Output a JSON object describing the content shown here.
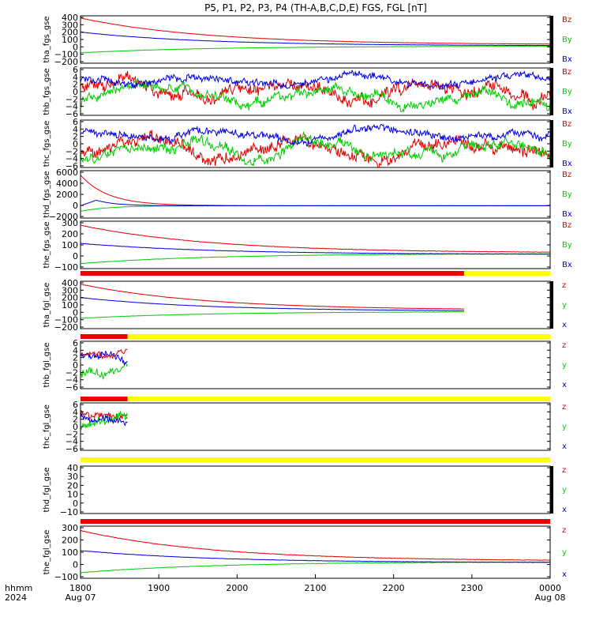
{
  "title": "P5, P1, P2, P3, P4 (TH-A,B,C,D,E) FGS, FGL [nT]",
  "footer": {
    "left1": "hhmm",
    "left2": "2024"
  },
  "colors": {
    "red": "#dd0000",
    "green": "#00cc00",
    "blue": "#0000dd",
    "status_red": "#ee0000",
    "status_yellow": "#ffff00"
  },
  "x_axis": {
    "ticks": [
      "1800",
      "1900",
      "2000",
      "2100",
      "2200",
      "2300",
      "0000"
    ],
    "subticks": [
      "Aug 07",
      "",
      "",
      "",
      "",
      "",
      "Aug 08"
    ],
    "range_hours": [
      0,
      6
    ]
  },
  "chart_data": [
    {
      "type": "line",
      "ylabel": "tha_fgs_gse",
      "yticks": [
        "400",
        "300",
        "200",
        "100",
        "0",
        "−100",
        "−200"
      ],
      "ylim": [
        -220,
        420
      ],
      "legend": [
        "Bz",
        "By",
        "Bx"
      ],
      "series": [
        {
          "name": "Bz",
          "color": "red",
          "shape": "decay",
          "start": 390,
          "end": 30,
          "tau": 1.6,
          "noise": 3
        },
        {
          "name": "By",
          "color": "green",
          "shape": "rise",
          "start": -80,
          "end": 10,
          "tau": 1.6,
          "noise": 3
        },
        {
          "name": "Bx",
          "color": "blue",
          "shape": "decay",
          "start": 200,
          "end": 15,
          "tau": 1.6,
          "noise": 3
        }
      ],
      "time_end": 6,
      "right_bar": true
    },
    {
      "type": "line",
      "ylabel": "thb_fgs_gse",
      "yticks": [
        "6",
        "4",
        "2",
        "0",
        "−2",
        "−4",
        "−6"
      ],
      "ylim": [
        -6.5,
        6.5
      ],
      "legend": [
        "Bz",
        "By",
        "Bx"
      ],
      "series": [
        {
          "name": "Bz",
          "color": "red",
          "shape": "noise",
          "base": 0,
          "amp": 4.5,
          "noise": 2.5
        },
        {
          "name": "By",
          "color": "green",
          "shape": "noise",
          "base": -1.5,
          "amp": 3.5,
          "noise": 2
        },
        {
          "name": "Bx",
          "color": "blue",
          "shape": "noise",
          "base": 3,
          "amp": 2,
          "noise": 1.5
        }
      ],
      "time_end": 6,
      "right_bar": true
    },
    {
      "type": "line",
      "ylabel": "thc_fgs_gse",
      "yticks": [
        "6",
        "4",
        "2",
        "0",
        "−2",
        "−4",
        "−6"
      ],
      "ylim": [
        -6.5,
        6.5
      ],
      "legend": [
        "Bz",
        "By",
        "Bx"
      ],
      "series": [
        {
          "name": "Bz",
          "color": "red",
          "shape": "noise",
          "base": -1,
          "amp": 4,
          "noise": 2.5
        },
        {
          "name": "By",
          "color": "green",
          "shape": "noise",
          "base": -2,
          "amp": 3.5,
          "noise": 2
        },
        {
          "name": "Bx",
          "color": "blue",
          "shape": "noise",
          "base": 2.5,
          "amp": 2.5,
          "noise": 1.5
        }
      ],
      "time_end": 6,
      "right_bar": true
    },
    {
      "type": "line",
      "ylabel": "thd_fgs_gse",
      "yticks": [
        "6000",
        "4000",
        "2000",
        "0",
        "−2000"
      ],
      "ylim": [
        -2200,
        6300
      ],
      "legend": [
        "Bz",
        "By",
        "Bx"
      ],
      "series": [
        {
          "name": "Bz",
          "color": "red",
          "shape": "decay",
          "start": 5500,
          "end": 30,
          "tau": 0.35,
          "noise": 10
        },
        {
          "name": "By",
          "color": "green",
          "shape": "rise",
          "start": -1000,
          "end": 0,
          "tau": 0.35,
          "noise": 10
        },
        {
          "name": "Bx",
          "color": "blue",
          "shape": "bump",
          "start": 0,
          "peak": 1000,
          "end": 0,
          "noise": 8
        }
      ],
      "time_end": 6,
      "right_bar": false
    },
    {
      "type": "line",
      "ylabel": "the_fgs_gse",
      "yticks": [
        "300",
        "200",
        "100",
        "0",
        "−100"
      ],
      "ylim": [
        -140,
        330
      ],
      "legend": [
        "Bz",
        "By",
        "Bx"
      ],
      "series": [
        {
          "name": "Bz",
          "color": "red",
          "shape": "decay",
          "start": 290,
          "end": 15,
          "tau": 1.7,
          "noise": 4
        },
        {
          "name": "By",
          "color": "green",
          "shape": "rise",
          "start": -90,
          "end": 10,
          "tau": 1.7,
          "noise": 4
        },
        {
          "name": "Bx",
          "color": "blue",
          "shape": "decay",
          "start": 110,
          "end": 0,
          "tau": 1.7,
          "noise": 3
        }
      ],
      "time_end": 6,
      "right_bar": false
    },
    {
      "type": "line",
      "ylabel": "tha_fgl_gse",
      "yticks": [
        "400",
        "300",
        "200",
        "100",
        "0",
        "−100",
        "−200"
      ],
      "ylim": [
        -220,
        420
      ],
      "legend": [
        "z",
        "y",
        "x"
      ],
      "series": [
        {
          "name": "z",
          "color": "red",
          "shape": "decay",
          "start": 380,
          "end": 30,
          "tau": 1.6,
          "noise": 3
        },
        {
          "name": "y",
          "color": "green",
          "shape": "rise",
          "start": -80,
          "end": 10,
          "tau": 1.6,
          "noise": 3
        },
        {
          "name": "x",
          "color": "blue",
          "shape": "decay",
          "start": 200,
          "end": 15,
          "tau": 1.6,
          "noise": 3
        }
      ],
      "time_end": 4.9,
      "right_bar": true,
      "status": [
        {
          "from": 0,
          "to": 4.9,
          "color": "red"
        },
        {
          "from": 4.9,
          "to": 6,
          "color": "yellow"
        }
      ]
    },
    {
      "type": "line",
      "ylabel": "thb_fgl_gse",
      "yticks": [
        "6",
        "4",
        "2",
        "0",
        "−2",
        "−4",
        "−6"
      ],
      "ylim": [
        -6.5,
        6.5
      ],
      "legend": [
        "z",
        "y",
        "x"
      ],
      "series": [
        {
          "name": "z",
          "color": "red",
          "shape": "noise",
          "base": 3.5,
          "amp": 1.5,
          "noise": 1.5
        },
        {
          "name": "y",
          "color": "green",
          "shape": "noise",
          "base": -1,
          "amp": 3,
          "noise": 2
        },
        {
          "name": "x",
          "color": "blue",
          "shape": "noise",
          "base": 1,
          "amp": 2.5,
          "noise": 1.5
        }
      ],
      "time_end": 0.6,
      "right_bar": false,
      "status": [
        {
          "from": 0,
          "to": 0.6,
          "color": "red"
        },
        {
          "from": 0.6,
          "to": 6,
          "color": "yellow"
        }
      ]
    },
    {
      "type": "line",
      "ylabel": "thc_fgl_gse",
      "yticks": [
        "6",
        "4",
        "2",
        "0",
        "−2",
        "−4",
        "−6"
      ],
      "ylim": [
        -6.5,
        6.5
      ],
      "legend": [
        "z",
        "y",
        "x"
      ],
      "series": [
        {
          "name": "z",
          "color": "red",
          "shape": "noise",
          "base": 4,
          "amp": 1.5,
          "noise": 1.5
        },
        {
          "name": "y",
          "color": "green",
          "shape": "noise",
          "base": 0,
          "amp": 3,
          "noise": 2
        },
        {
          "name": "x",
          "color": "blue",
          "shape": "noise",
          "base": 2,
          "amp": 2,
          "noise": 1.5
        }
      ],
      "time_end": 0.6,
      "right_bar": false,
      "status": [
        {
          "from": 0,
          "to": 0.6,
          "color": "red"
        },
        {
          "from": 0.6,
          "to": 6,
          "color": "yellow"
        }
      ]
    },
    {
      "type": "line",
      "ylabel": "thd_fgl_gse",
      "yticks": [
        "40",
        "30",
        "20",
        "10",
        "0",
        "−10"
      ],
      "ylim": [
        -12,
        44
      ],
      "legend": [
        "z",
        "y",
        "x"
      ],
      "series": [],
      "time_end": 0,
      "right_bar": true,
      "status": [
        {
          "from": 0,
          "to": 6,
          "color": "yellow"
        }
      ]
    },
    {
      "type": "line",
      "ylabel": "the_fgl_gse",
      "yticks": [
        "300",
        "200",
        "100",
        "0",
        "−100"
      ],
      "ylim": [
        -140,
        330
      ],
      "legend": [
        "z",
        "y",
        "x"
      ],
      "series": [
        {
          "name": "z",
          "color": "red",
          "shape": "decay",
          "start": 290,
          "end": 15,
          "tau": 1.7,
          "noise": 4
        },
        {
          "name": "y",
          "color": "green",
          "shape": "rise",
          "start": -90,
          "end": 10,
          "tau": 1.7,
          "noise": 4
        },
        {
          "name": "x",
          "color": "blue",
          "shape": "decay",
          "start": 110,
          "end": 0,
          "tau": 1.7,
          "noise": 3
        }
      ],
      "time_end": 6,
      "right_bar": false,
      "status": [
        {
          "from": 0,
          "to": 6,
          "color": "red"
        }
      ]
    }
  ]
}
